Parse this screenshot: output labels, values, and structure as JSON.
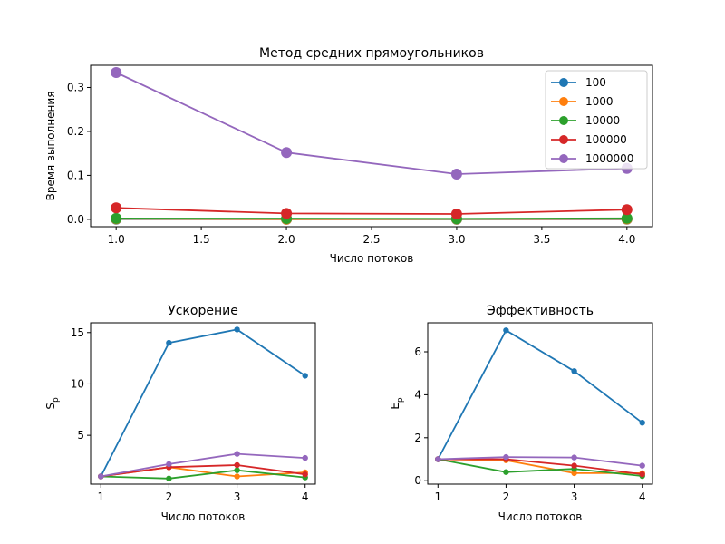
{
  "chart_data": [
    {
      "type": "line",
      "title": "Метод средних прямоугольников",
      "xlabel": "Число потоков",
      "ylabel": "Время выполнения",
      "xlim": [
        0.85,
        4.15
      ],
      "ylim": [
        -0.0167,
        0.3505
      ],
      "xticks": [
        1.0,
        1.5,
        2.0,
        2.5,
        3.0,
        3.5,
        4.0
      ],
      "xtick_labels": [
        "1.0",
        "1.5",
        "2.0",
        "2.5",
        "3.0",
        "3.5",
        "4.0"
      ],
      "yticks": [
        0.0,
        0.1,
        0.2,
        0.3
      ],
      "ytick_labels": [
        "0.0",
        "0.1",
        "0.2",
        "0.3"
      ],
      "legend_position": "top-right",
      "grid": false,
      "x": [
        1,
        2,
        3,
        4
      ],
      "series": [
        {
          "name": "100",
          "color": "#1f77b4",
          "values": [
            0.0005,
            0.0001,
            0.0001,
            0.0002
          ]
        },
        {
          "name": "1000",
          "color": "#ff7f0e",
          "values": [
            0.001,
            0.0005,
            0.0007,
            0.0008
          ]
        },
        {
          "name": "10000",
          "color": "#2ca02c",
          "values": [
            0.002,
            0.0019,
            0.0012,
            0.0023
          ]
        },
        {
          "name": "100000",
          "color": "#d62728",
          "values": [
            0.026,
            0.0135,
            0.0122,
            0.022
          ]
        },
        {
          "name": "1000000",
          "color": "#9467bd",
          "values": [
            0.334,
            0.152,
            0.103,
            0.116
          ]
        }
      ]
    },
    {
      "type": "line",
      "title": "Ускорение",
      "xlabel": "Число потоков",
      "ylabel": "S",
      "ylabel_sub": "p",
      "xlim": [
        0.85,
        4.15
      ],
      "ylim": [
        0.25,
        15.95
      ],
      "xticks": [
        1,
        2,
        3,
        4
      ],
      "xtick_labels": [
        "1",
        "2",
        "3",
        "4"
      ],
      "yticks": [
        5,
        10,
        15
      ],
      "ytick_labels": [
        "5",
        "10",
        "15"
      ],
      "grid": false,
      "x": [
        1,
        2,
        3,
        4
      ],
      "series": [
        {
          "color": "#1f77b4",
          "values": [
            1.0,
            14.0,
            15.3,
            10.8
          ]
        },
        {
          "color": "#ff7f0e",
          "values": [
            1.0,
            1.9,
            1.0,
            1.4
          ]
        },
        {
          "color": "#2ca02c",
          "values": [
            1.0,
            0.8,
            1.6,
            0.9
          ]
        },
        {
          "color": "#d62728",
          "values": [
            1.0,
            1.9,
            2.1,
            1.2
          ]
        },
        {
          "color": "#9467bd",
          "values": [
            1.0,
            2.2,
            3.2,
            2.8
          ]
        }
      ]
    },
    {
      "type": "line",
      "title": "Эффективность",
      "xlabel": "Число потоков",
      "ylabel": "E",
      "ylabel_sub": "p",
      "xlim": [
        0.85,
        4.15
      ],
      "ylim": [
        -0.16,
        7.35
      ],
      "xticks": [
        1,
        2,
        3,
        4
      ],
      "xtick_labels": [
        "1",
        "2",
        "3",
        "4"
      ],
      "yticks": [
        0,
        2,
        4,
        6
      ],
      "ytick_labels": [
        "0",
        "2",
        "4",
        "6"
      ],
      "grid": false,
      "x": [
        1,
        2,
        3,
        4
      ],
      "series": [
        {
          "color": "#1f77b4",
          "values": [
            1.0,
            7.0,
            5.1,
            2.7
          ]
        },
        {
          "color": "#ff7f0e",
          "values": [
            1.0,
            0.95,
            0.35,
            0.35
          ]
        },
        {
          "color": "#2ca02c",
          "values": [
            1.0,
            0.4,
            0.55,
            0.22
          ]
        },
        {
          "color": "#d62728",
          "values": [
            1.0,
            1.0,
            0.7,
            0.3
          ]
        },
        {
          "color": "#9467bd",
          "values": [
            1.0,
            1.1,
            1.08,
            0.7
          ]
        }
      ]
    }
  ]
}
